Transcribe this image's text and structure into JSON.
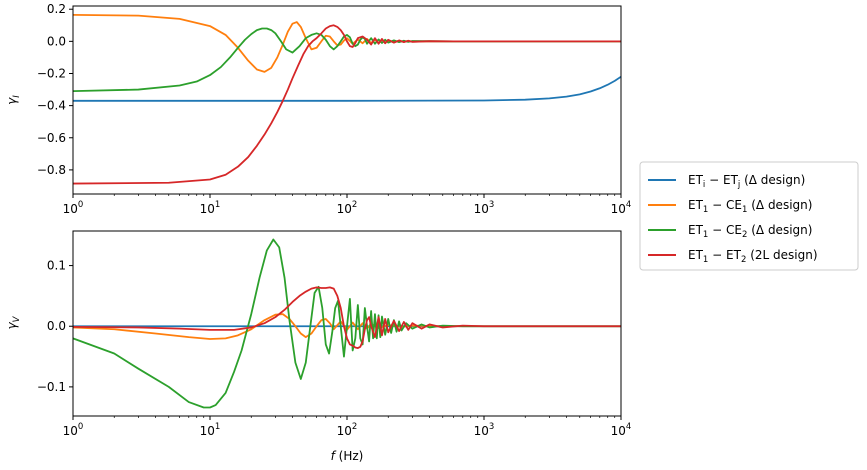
{
  "chart_data": [
    {
      "type": "line",
      "x_scale": "log",
      "xlim": [
        1,
        10000
      ],
      "ylim": [
        -0.95,
        0.22
      ],
      "ylabel": "γI",
      "xlabel": "",
      "x_ticks": [
        {
          "value": 1,
          "base": "10",
          "exp": "0"
        },
        {
          "value": 10,
          "base": "10",
          "exp": "1"
        },
        {
          "value": 100,
          "base": "10",
          "exp": "2"
        },
        {
          "value": 1000,
          "base": "10",
          "exp": "3"
        },
        {
          "value": 10000,
          "base": "10",
          "exp": "4"
        }
      ],
      "y_ticks": [
        {
          "value": 0.2,
          "label": "0.2"
        },
        {
          "value": 0.0,
          "label": "0.0"
        },
        {
          "value": -0.2,
          "label": "−0.2"
        },
        {
          "value": -0.4,
          "label": "−0.4"
        },
        {
          "value": -0.6,
          "label": "−0.6"
        },
        {
          "value": -0.8,
          "label": "−0.8"
        }
      ],
      "series": [
        {
          "color": "#1f77b4",
          "x": [
            1,
            10,
            100,
            1000,
            2000,
            3000,
            4000,
            5000,
            6000,
            7000,
            8000,
            9000,
            10000
          ],
          "y": [
            -0.37,
            -0.37,
            -0.37,
            -0.368,
            -0.363,
            -0.355,
            -0.344,
            -0.33,
            -0.312,
            -0.292,
            -0.27,
            -0.246,
            -0.22
          ]
        },
        {
          "color": "#ff7f0e",
          "x": [
            1,
            3,
            6,
            10,
            13,
            16,
            19,
            22,
            25,
            28,
            31,
            34,
            37,
            40,
            43,
            46,
            50,
            55,
            60,
            65,
            70,
            75,
            80,
            85,
            90,
            95,
            100,
            110,
            120,
            130,
            140,
            150,
            160,
            170,
            180,
            190,
            200,
            220,
            240,
            260,
            280,
            300,
            400,
            600,
            1000,
            10000
          ],
          "y": [
            0.165,
            0.16,
            0.14,
            0.095,
            0.04,
            -0.04,
            -0.12,
            -0.175,
            -0.19,
            -0.165,
            -0.1,
            -0.02,
            0.06,
            0.11,
            0.12,
            0.09,
            0.02,
            -0.05,
            -0.04,
            0.0,
            0.035,
            0.03,
            0.0,
            -0.025,
            -0.02,
            0.005,
            0.02,
            -0.015,
            0.012,
            -0.012,
            0.015,
            -0.01,
            0.01,
            -0.008,
            0.009,
            -0.007,
            0.006,
            -0.005,
            0.004,
            -0.003,
            0.003,
            -0.002,
            0.0,
            0.0,
            0.0,
            0.0
          ]
        },
        {
          "color": "#2ca02c",
          "x": [
            1,
            3,
            6,
            8,
            10,
            12,
            14,
            16,
            18,
            20,
            22,
            24,
            26,
            28,
            30,
            33,
            36,
            40,
            45,
            50,
            55,
            60,
            65,
            70,
            75,
            80,
            85,
            90,
            95,
            100,
            105,
            110,
            115,
            120,
            125,
            130,
            135,
            140,
            150,
            160,
            170,
            180,
            190,
            200,
            220,
            240,
            260,
            280,
            300,
            400,
            600,
            1000,
            10000
          ],
          "y": [
            -0.31,
            -0.3,
            -0.275,
            -0.25,
            -0.21,
            -0.16,
            -0.1,
            -0.04,
            0.01,
            0.045,
            0.07,
            0.08,
            0.08,
            0.07,
            0.05,
            0.0,
            -0.05,
            -0.07,
            -0.03,
            0.02,
            0.04,
            0.05,
            0.04,
            0.01,
            -0.03,
            -0.05,
            -0.03,
            0.0,
            0.03,
            0.04,
            0.025,
            -0.015,
            -0.03,
            -0.02,
            0.01,
            0.025,
            0.015,
            -0.015,
            0.02,
            -0.015,
            0.012,
            -0.01,
            0.01,
            -0.008,
            0.006,
            -0.005,
            0.004,
            -0.003,
            0.002,
            0.001,
            0.0,
            0.0,
            0.0
          ]
        },
        {
          "color": "#d62728",
          "x": [
            1,
            5,
            10,
            13,
            16,
            19,
            22,
            25,
            28,
            31,
            34,
            37,
            40,
            44,
            48,
            52,
            56,
            60,
            65,
            70,
            75,
            80,
            85,
            90,
            95,
            100,
            105,
            110,
            115,
            120,
            130,
            140,
            150,
            160,
            170,
            180,
            190,
            200,
            220,
            240,
            260,
            280,
            300,
            400,
            600,
            1000,
            10000
          ],
          "y": [
            -0.885,
            -0.88,
            -0.86,
            -0.83,
            -0.78,
            -0.72,
            -0.65,
            -0.58,
            -0.51,
            -0.44,
            -0.37,
            -0.3,
            -0.23,
            -0.15,
            -0.08,
            -0.03,
            0.0,
            0.02,
            0.05,
            0.08,
            0.095,
            0.1,
            0.09,
            0.07,
            0.04,
            0.0,
            -0.03,
            -0.035,
            -0.01,
            0.02,
            0.03,
            0.01,
            -0.02,
            0.02,
            -0.015,
            0.015,
            -0.012,
            0.01,
            -0.008,
            0.006,
            -0.005,
            0.004,
            -0.003,
            0.001,
            0.0,
            0.0,
            0.0
          ]
        }
      ]
    },
    {
      "type": "line",
      "x_scale": "log",
      "xlim": [
        1,
        10000
      ],
      "ylim": [
        -0.148,
        0.157
      ],
      "ylabel": "γV",
      "xlabel": "f (Hz)",
      "x_ticks": [
        {
          "value": 1,
          "base": "10",
          "exp": "0"
        },
        {
          "value": 10,
          "base": "10",
          "exp": "1"
        },
        {
          "value": 100,
          "base": "10",
          "exp": "2"
        },
        {
          "value": 1000,
          "base": "10",
          "exp": "3"
        },
        {
          "value": 10000,
          "base": "10",
          "exp": "4"
        }
      ],
      "y_ticks": [
        {
          "value": 0.1,
          "label": "0.1"
        },
        {
          "value": 0.0,
          "label": "0.0"
        },
        {
          "value": -0.1,
          "label": "−0.1"
        }
      ],
      "series": [
        {
          "color": "#1f77b4",
          "x": [
            1,
            10000
          ],
          "y": [
            0.0,
            0.0
          ]
        },
        {
          "color": "#ff7f0e",
          "x": [
            1,
            2,
            4,
            7,
            10,
            13,
            16,
            20,
            25,
            30,
            34,
            38,
            42,
            46,
            50,
            55,
            60,
            65,
            70,
            75,
            80,
            90,
            100,
            110,
            120,
            130,
            140,
            150,
            170,
            200,
            250,
            300,
            500,
            1000,
            10000
          ],
          "y": [
            -0.002,
            -0.005,
            -0.012,
            -0.018,
            -0.021,
            -0.02,
            -0.015,
            -0.005,
            0.01,
            0.019,
            0.02,
            0.012,
            0.0,
            -0.012,
            -0.018,
            -0.012,
            0.0,
            0.01,
            0.012,
            0.005,
            -0.005,
            0.008,
            -0.006,
            0.006,
            -0.005,
            0.005,
            -0.004,
            0.004,
            -0.003,
            0.002,
            -0.001,
            0.001,
            0.0,
            0.0,
            0.0
          ]
        },
        {
          "color": "#2ca02c",
          "x": [
            1,
            2,
            3,
            5,
            7,
            9,
            10,
            11,
            13,
            15,
            17,
            20,
            23,
            26,
            29,
            32,
            35,
            38,
            42,
            46,
            50,
            54,
            58,
            62,
            66,
            70,
            74,
            78,
            82,
            86,
            90,
            95,
            100,
            105,
            110,
            115,
            120,
            125,
            130,
            135,
            140,
            145,
            150,
            155,
            160,
            165,
            170,
            175,
            180,
            190,
            200,
            210,
            220,
            230,
            240,
            250,
            270,
            300,
            350,
            400,
            500,
            700,
            1000,
            2000,
            10000
          ],
          "y": [
            -0.02,
            -0.045,
            -0.07,
            -0.1,
            -0.125,
            -0.134,
            -0.134,
            -0.13,
            -0.11,
            -0.075,
            -0.04,
            0.02,
            0.08,
            0.125,
            0.143,
            0.13,
            0.08,
            0.01,
            -0.06,
            -0.087,
            -0.06,
            0.0,
            0.055,
            0.065,
            0.03,
            -0.03,
            -0.045,
            -0.01,
            0.03,
            0.042,
            0.0,
            -0.05,
            0.0,
            0.045,
            -0.04,
            -0.02,
            0.035,
            -0.02,
            -0.03,
            0.03,
            0.0,
            -0.025,
            0.025,
            -0.02,
            0.02,
            -0.02,
            0.018,
            -0.018,
            0.016,
            -0.014,
            0.012,
            -0.011,
            0.01,
            -0.009,
            0.008,
            -0.007,
            0.005,
            -0.004,
            0.003,
            -0.002,
            0.001,
            0.0,
            0.0,
            0.0,
            0.0
          ]
        },
        {
          "color": "#d62728",
          "x": [
            1,
            3,
            6,
            10,
            15,
            20,
            25,
            30,
            35,
            40,
            45,
            50,
            55,
            60,
            65,
            70,
            75,
            80,
            85,
            90,
            95,
            100,
            105,
            110,
            115,
            120,
            125,
            130,
            135,
            140,
            145,
            150,
            160,
            170,
            180,
            190,
            200,
            220,
            240,
            260,
            280,
            300,
            350,
            400,
            500,
            700,
            1000,
            10000
          ],
          "y": [
            -0.001,
            -0.002,
            -0.004,
            -0.006,
            -0.006,
            -0.002,
            0.005,
            0.015,
            0.027,
            0.04,
            0.05,
            0.057,
            0.062,
            0.064,
            0.063,
            0.063,
            0.064,
            0.062,
            0.05,
            0.03,
            0.0,
            -0.02,
            -0.03,
            -0.032,
            -0.035,
            -0.036,
            -0.034,
            -0.025,
            -0.005,
            0.01,
            0.015,
            0.0,
            -0.018,
            0.015,
            -0.015,
            0.012,
            -0.01,
            0.009,
            -0.008,
            0.007,
            -0.006,
            0.005,
            -0.004,
            0.003,
            -0.002,
            0.001,
            0.0,
            0.0
          ]
        }
      ]
    }
  ],
  "legend": {
    "entries": [
      {
        "color": "#1f77b4",
        "main": "ET",
        "sub1": "i",
        "mid": " − ET",
        "sub2": "j",
        "tail": " (Δ design)"
      },
      {
        "color": "#ff7f0e",
        "main": "ET",
        "sub1": "1",
        "mid": " − CE",
        "sub2": "1",
        "tail": " (Δ design)"
      },
      {
        "color": "#2ca02c",
        "main": "ET",
        "sub1": "1",
        "mid": " − CE",
        "sub2": "2",
        "tail": " (Δ design)"
      },
      {
        "color": "#d62728",
        "main": "ET",
        "sub1": "1",
        "mid": " − ET",
        "sub2": "2",
        "tail": " (2L design)"
      }
    ]
  }
}
